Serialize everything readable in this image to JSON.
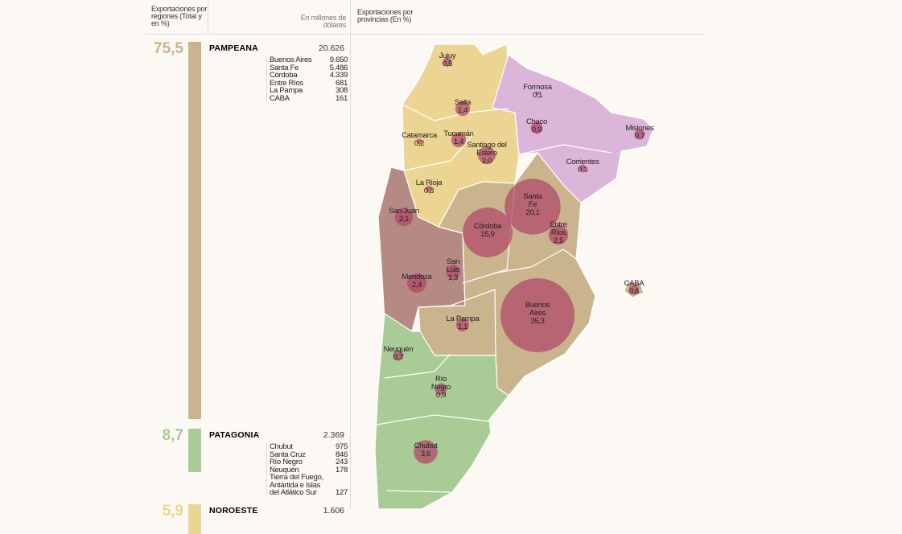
{
  "header": {
    "regions_title": "Exportaciones por regiones (Total y en %)",
    "units": "En millones de dólares",
    "map_title": "Exportaciones por provincias (En %)"
  },
  "regions": [
    {
      "name": "PAMPEANA",
      "color": "#c9b48e",
      "percent": {
        "value": 75.5,
        "label": "75,5"
      },
      "total": "20.626",
      "provinces": [
        {
          "name": "Buenos Aires",
          "value": "9.650"
        },
        {
          "name": "Santa Fe",
          "value": "5.486"
        },
        {
          "name": "Córdoba",
          "value": "4.339"
        },
        {
          "name": "Entre Ríos",
          "value": "681"
        },
        {
          "name": "La Pampa",
          "value": "308"
        },
        {
          "name": "CABA",
          "value": "161"
        }
      ]
    },
    {
      "name": "PATAGONIA",
      "color": "#a9cb95",
      "percent": {
        "value": 8.7,
        "label": "8,7"
      },
      "total": "2.369",
      "provinces": [
        {
          "name": "Chubut",
          "value": "975"
        },
        {
          "name": "Santa Cruz",
          "value": "846"
        },
        {
          "name": "Río Negro",
          "value": "243"
        },
        {
          "name": "Neuquén",
          "value": "178"
        },
        {
          "name": "Tierra del Fuego, Antártida e Islas del Atlático Sur",
          "value": "127"
        }
      ]
    },
    {
      "name": "NOROESTE",
      "color": "#ecd592",
      "percent": {
        "value": 5.9,
        "label": "5,9"
      },
      "total": "1.606",
      "provinces": []
    }
  ],
  "provinces": [
    {
      "name": "Jujuy",
      "value": 0.5,
      "label": "0,5"
    },
    {
      "name": "Salta",
      "value": 1.4,
      "label": "1,4"
    },
    {
      "name": "Formosa",
      "value": 0.1,
      "label": "0,1"
    },
    {
      "name": "Chaco",
      "value": 0.9,
      "label": "0,9"
    },
    {
      "name": "Misiones",
      "value": 0.7,
      "label": "0,7"
    },
    {
      "name": "Catamarca",
      "value": 0.2,
      "label": "0,2"
    },
    {
      "name": "Tucumán",
      "value": 1.4,
      "label": "1,4"
    },
    {
      "name": "Santiago del Estero",
      "value": 2.0,
      "label": "2,0"
    },
    {
      "name": "Corrientes",
      "value": 0.3,
      "label": "0,3"
    },
    {
      "name": "Santa Fe",
      "value": 20.1,
      "label": "20,1"
    },
    {
      "name": "La Rioja",
      "value": 0.3,
      "label": "0,3"
    },
    {
      "name": "San Juan",
      "value": 2.1,
      "label": "2,1"
    },
    {
      "name": "Córdoba",
      "value": 15.9,
      "label": "15,9"
    },
    {
      "name": "Entre Ríos",
      "value": 2.5,
      "label": "2,5"
    },
    {
      "name": "San Luis",
      "value": 1.3,
      "label": "1,3"
    },
    {
      "name": "Mendoza",
      "value": 2.4,
      "label": "2,4"
    },
    {
      "name": "CABA",
      "value": 0.6,
      "label": "0,6"
    },
    {
      "name": "Buenos Aires",
      "value": 35.3,
      "label": "35,3"
    },
    {
      "name": "La Pampa",
      "value": 1.1,
      "label": "1,1"
    },
    {
      "name": "Neuquén",
      "value": 0.7,
      "label": "0,7"
    },
    {
      "name": "Río Negro",
      "value": 0.9,
      "label": "0,9"
    },
    {
      "name": "Chubut",
      "value": 3.6,
      "label": "3,6"
    }
  ]
}
